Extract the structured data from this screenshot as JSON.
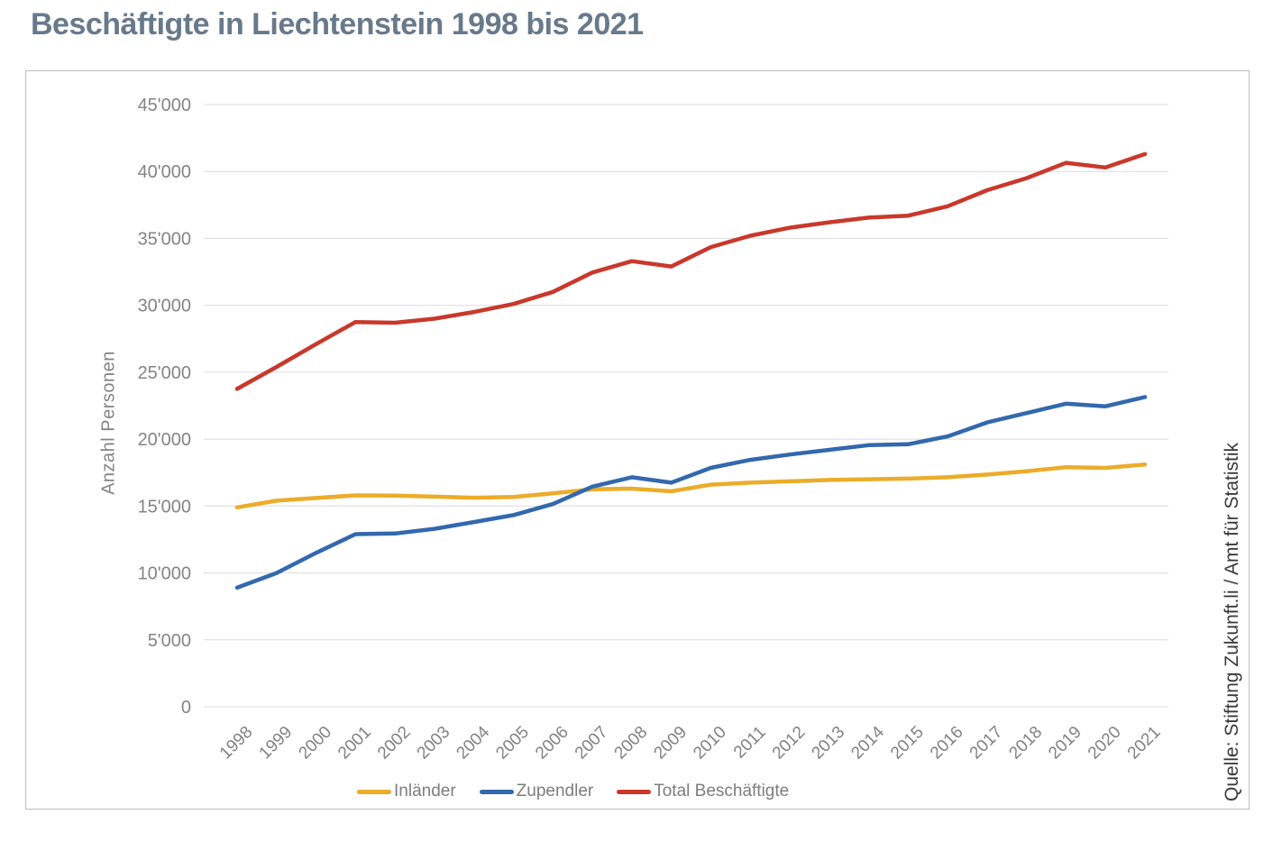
{
  "page": {
    "title": "Beschäftigte in Liechtenstein 1998 bis 2021"
  },
  "chart_data": {
    "type": "line",
    "title": "Beschäftigte in Liechtenstein 1998 bis 2021",
    "ylabel": "Anzahl Personen",
    "xlabel": "",
    "ylim": [
      0,
      45000
    ],
    "ytick_step": 5000,
    "ytick_labels": [
      "0",
      "5'000",
      "10'000",
      "15'000",
      "20'000",
      "25'000",
      "30'000",
      "35'000",
      "40'000",
      "45'000"
    ],
    "grid": true,
    "legend_position": "bottom",
    "x": [
      1998,
      1999,
      2000,
      2001,
      2002,
      2003,
      2004,
      2005,
      2006,
      2007,
      2008,
      2009,
      2010,
      2011,
      2012,
      2013,
      2014,
      2015,
      2016,
      2017,
      2018,
      2019,
      2020,
      2021
    ],
    "series": [
      {
        "name": "Inländer",
        "color": "#EBAC29",
        "values": [
          14900,
          15400,
          15600,
          15800,
          15780,
          15700,
          15620,
          15680,
          15950,
          16250,
          16300,
          16100,
          16600,
          16750,
          16850,
          16950,
          17000,
          17050,
          17150,
          17350,
          17600,
          17900,
          17850,
          18100
        ]
      },
      {
        "name": "Zupendler",
        "color": "#3268AE",
        "values": [
          8900,
          10000,
          11500,
          12900,
          12950,
          13300,
          13800,
          14320,
          15150,
          16450,
          17150,
          16750,
          17850,
          18450,
          18850,
          19200,
          19550,
          19620,
          20200,
          21250,
          21950,
          22650,
          22450,
          23150
        ]
      },
      {
        "name": "Total Beschäftigte",
        "color": "#C9382B",
        "values": [
          23750,
          25400,
          27100,
          28750,
          28700,
          29000,
          29500,
          30100,
          31000,
          32450,
          33300,
          32900,
          34350,
          35200,
          35800,
          36200,
          36550,
          36700,
          37400,
          38600,
          39500,
          40650,
          40300,
          41300
        ]
      }
    ],
    "source_note": "Quelle: Stiftung Zukunft.li / Amt für Statistik"
  }
}
